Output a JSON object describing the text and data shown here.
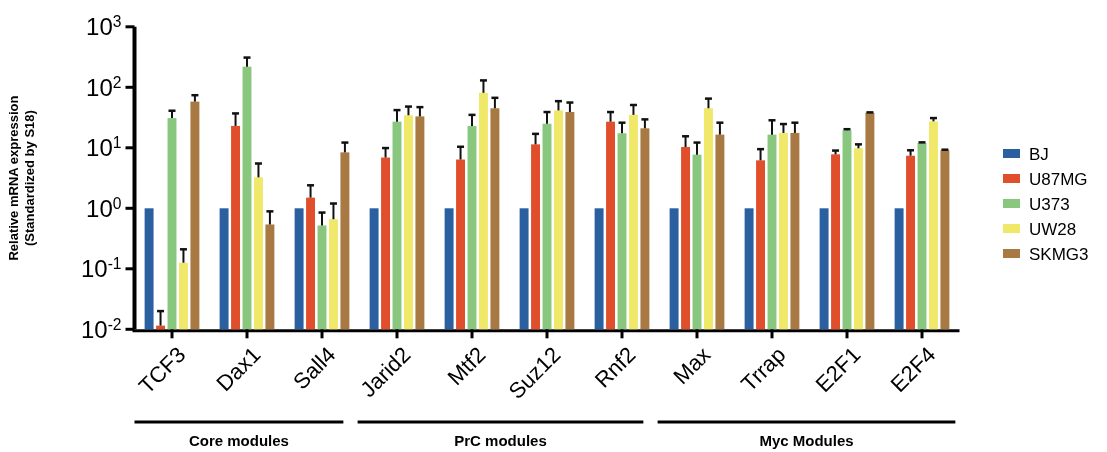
{
  "chart_data": {
    "type": "bar",
    "ylabel": "Relative mRNA expression\n(Standardized by S18)",
    "log": true,
    "ylim": [
      0.01,
      1000
    ],
    "yticks": [
      {
        "value": 0.01,
        "label": "10$^{-2}$"
      },
      {
        "value": 0.1,
        "label": "10$^{-1}$"
      },
      {
        "value": 1,
        "label": "10$^{0}$"
      },
      {
        "value": 10,
        "label": "10$^{1}$"
      },
      {
        "value": 100,
        "label": "10$^{2}$"
      },
      {
        "value": 1000,
        "label": "10$^{3}$"
      }
    ],
    "categories": [
      "TCF3",
      "Dax1",
      "Sall4",
      "Jarid2",
      "Mtf2",
      "Suz12",
      "Rnf2",
      "Max",
      "Trrap",
      "E2F1",
      "E2F4"
    ],
    "legend": "right",
    "grid": false,
    "annotations": [
      "Core modules",
      "PrC modules",
      "Myc Modules"
    ],
    "series": [
      {
        "name": "BJ",
        "color": "#2a5fa0",
        "values": [
          1,
          1,
          1,
          1,
          1,
          1,
          1,
          1,
          1,
          1,
          1
        ]
      },
      {
        "name": "U87MG",
        "color": "#e04e2c",
        "values": [
          0.0115,
          23,
          1.5,
          6.9,
          6.4,
          11.4,
          27,
          10.3,
          6.2,
          7.8,
          7.4
        ],
        "errors": [
          [
            0.0115,
            0.02
          ],
          [
            23,
            37
          ],
          [
            1.5,
            2.4
          ],
          [
            6.9,
            9.9
          ],
          [
            6.4,
            10.4
          ],
          [
            11.4,
            17
          ],
          [
            27,
            39
          ],
          [
            10.3,
            15.5
          ],
          [
            6.2,
            9.5
          ],
          [
            7.8,
            9
          ],
          [
            7.4,
            9.1
          ]
        ]
      },
      {
        "name": "U373",
        "color": "#88c77d",
        "values": [
          31,
          219,
          0.52,
          27,
          23,
          25,
          17.4,
          7.7,
          16.5,
          19.5,
          12
        ],
        "errors": [
          [
            31,
            41
          ],
          [
            219,
            310
          ],
          [
            0.52,
            0.85
          ],
          [
            27,
            42
          ],
          [
            23,
            35
          ],
          [
            25,
            39
          ],
          [
            17.4,
            26
          ],
          [
            7.7,
            12.2
          ],
          [
            16.5,
            28.5
          ],
          [
            19.5,
            20.3
          ],
          [
            12,
            12.3
          ]
        ]
      },
      {
        "name": "UW28",
        "color": "#f0e868",
        "values": [
          0.126,
          3.25,
          0.66,
          34.5,
          81,
          41.5,
          35,
          45,
          17.6,
          9.8,
          27.4
        ],
        "errors": [
          [
            0.126,
            0.21
          ],
          [
            3.25,
            5.5
          ],
          [
            0.66,
            1.2
          ],
          [
            34.5,
            48
          ],
          [
            81,
            130
          ],
          [
            41.5,
            59
          ],
          [
            35,
            51
          ],
          [
            45,
            65
          ],
          [
            17.6,
            24.7
          ],
          [
            9.8,
            11.4
          ],
          [
            27.4,
            31
          ]
        ]
      },
      {
        "name": "SKMG3",
        "color": "#a87942",
        "values": [
          58,
          0.54,
          8.4,
          33,
          45,
          39,
          21,
          16.5,
          17.6,
          38,
          9.1
        ],
        "errors": [
          [
            58,
            74
          ],
          [
            0.54,
            0.89
          ],
          [
            8.4,
            12.2
          ],
          [
            33,
            47
          ],
          [
            45,
            67
          ],
          [
            39,
            56
          ],
          [
            21,
            29.5
          ],
          [
            16.5,
            26
          ],
          [
            17.6,
            26
          ],
          [
            38,
            38.5
          ],
          [
            9.1,
            9.3
          ]
        ]
      }
    ]
  }
}
